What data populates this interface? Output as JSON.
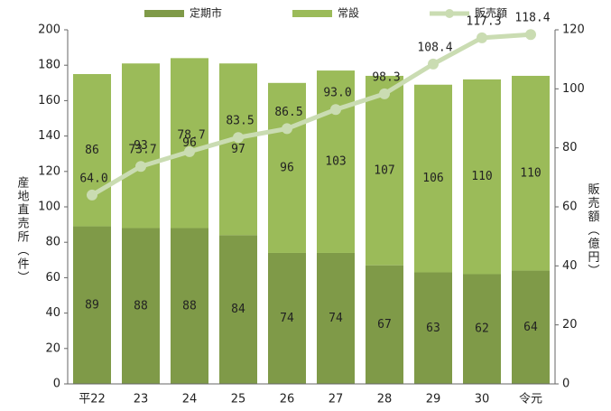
{
  "chart_data": {
    "type": "bar_line",
    "categories": [
      "平22",
      "23",
      "24",
      "25",
      "26",
      "27",
      "28",
      "29",
      "30",
      "令元"
    ],
    "series": [
      {
        "name": "定期市",
        "color": "#7f9a48",
        "values": [
          89,
          88,
          88,
          84,
          74,
          74,
          67,
          63,
          62,
          64
        ]
      },
      {
        "name": "常設",
        "color": "#9bbb59",
        "values": [
          86,
          93,
          96,
          97,
          96,
          103,
          107,
          106,
          110,
          110
        ]
      },
      {
        "name": "販売額",
        "color": "#cadcb2",
        "axis": "y2",
        "values": [
          64.0,
          73.7,
          78.7,
          83.5,
          86.5,
          93.0,
          98.3,
          108.4,
          117.3,
          118.4
        ],
        "value_labels": [
          "64.0",
          "73.7",
          "78.7",
          "83.5",
          "86.5",
          "93.0",
          "98.3",
          "108.4",
          "117.3",
          "118.4"
        ]
      }
    ],
    "ylabel": "産地直売所（件）",
    "y2label": "販売額（億円）",
    "ylim": [
      0,
      200
    ],
    "yticks": [
      0,
      20,
      40,
      60,
      80,
      100,
      120,
      140,
      160,
      180,
      200
    ],
    "y2lim": [
      0,
      120
    ],
    "y2ticks": [
      0,
      20,
      40,
      60,
      80,
      100,
      120
    ],
    "grid": false,
    "legend": "top"
  }
}
